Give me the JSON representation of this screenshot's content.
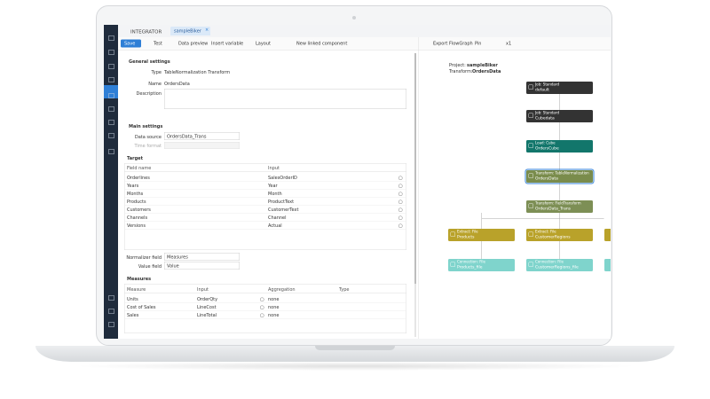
{
  "header": {
    "app": "INTEGRATOR",
    "tab": "sampleBiker"
  },
  "toolbar": [
    "Save",
    "Test",
    "Data preview",
    "Insert variable",
    "Layout",
    "New linked component"
  ],
  "right_toolbar": [
    "Export FlowGraph",
    "Pin",
    "x1"
  ],
  "general": {
    "title": "General settings",
    "type_label": "Type",
    "type": "TableNormalization Transform",
    "name_label": "Name",
    "name": "OrdersData",
    "description_label": "Description"
  },
  "main": {
    "title": "Main settings",
    "data_source_label": "Data source",
    "data_source": "OrdersData_Trans",
    "time_format_label": "Time format"
  },
  "target": {
    "title": "Target",
    "columns": [
      "Field name",
      "Input"
    ],
    "rows": [
      [
        "Orderlines",
        "SalesOrderID"
      ],
      [
        "Years",
        "Year"
      ],
      [
        "Months",
        "Month"
      ],
      [
        "Products",
        "ProductText"
      ],
      [
        "Customers",
        "CustomerText"
      ],
      [
        "Channels",
        "Channel"
      ],
      [
        "Versions",
        "Actual"
      ]
    ]
  },
  "normalizer": {
    "field_label": "Normalizer field",
    "field": "Measures",
    "value_label": "Value field",
    "value": "Value"
  },
  "measures": {
    "title": "Measures",
    "columns": [
      "Measure",
      "Input",
      "Aggregation",
      "Type"
    ],
    "rows": [
      [
        "Units",
        "OrderQty",
        "none"
      ],
      [
        "Cost of Sales",
        "LineCost",
        "none"
      ],
      [
        "Sales",
        "LineTotal",
        "none"
      ]
    ]
  },
  "flow": {
    "project_label": "Project:",
    "project": "sampleBiker",
    "transform_label": "Transform:",
    "transform": "OrdersData",
    "nodes": [
      {
        "type": "Job: Standard",
        "name": "default"
      },
      {
        "type": "Job: Standard",
        "name": "Cubedata"
      },
      {
        "type": "Load: Cube",
        "name": "OrdersCube"
      },
      {
        "type": "Transform: TableNormalization",
        "name": "OrdersData"
      },
      {
        "type": "Transform: FieldTransform",
        "name": "OrdersData_Trans"
      },
      {
        "type": "Extract: File",
        "name": "Products"
      },
      {
        "type": "Extract: File",
        "name": "CustomerRegions"
      },
      {
        "type": "Connection: File",
        "name": "Products_file"
      },
      {
        "type": "Connection: File",
        "name": "CustomerRegions_file"
      }
    ]
  }
}
